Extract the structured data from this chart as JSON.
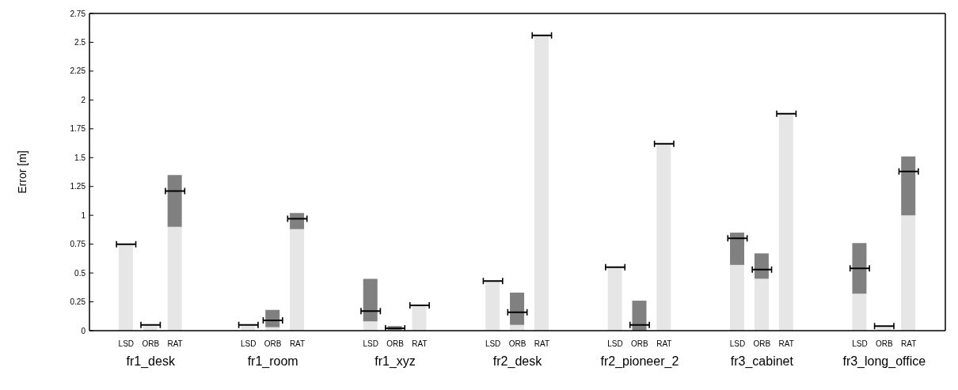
{
  "chart_data": {
    "type": "bar",
    "ylabel": "Error [m]",
    "stacked": true,
    "categories": [
      null,
      "LSD",
      "ORB",
      "RAT",
      null,
      null,
      "LSD",
      "ORB",
      "RAT",
      null,
      null,
      "LSD",
      "ORB",
      "RAT",
      null,
      null,
      "LSD",
      "ORB",
      "RAT",
      null,
      null,
      "LSD",
      "ORB",
      "RAT",
      null,
      null,
      "LSD",
      "ORB",
      "RAT",
      null,
      null,
      "LSD",
      "ORB",
      "RAT",
      null
    ],
    "series": [
      {
        "color": "#e6e6e6",
        "values": [
          null,
          0.75,
          0.04,
          0.9,
          null,
          null,
          0.04,
          0.03,
          0.88,
          null,
          null,
          0.08,
          0.005,
          0.22,
          null,
          null,
          0.43,
          0.05,
          2.56,
          null,
          null,
          0.55,
          0,
          1.62,
          null,
          null,
          0.57,
          0.45,
          1.88,
          null,
          null,
          0.32,
          0.03,
          1.0,
          null
        ]
      },
      {
        "color": "#808080",
        "values": [
          null,
          0,
          null,
          0.45,
          null,
          null,
          null,
          0.15,
          0.14,
          null,
          null,
          0.37,
          0.035,
          0,
          null,
          null,
          0,
          0.28,
          0,
          null,
          null,
          0,
          0.26,
          0,
          null,
          null,
          0.28,
          0.22,
          0,
          null,
          null,
          0.44,
          null,
          0.51,
          null
        ]
      },
      {
        "type": "scatter",
        "color": "#000000",
        "values": [
          null,
          0.75,
          0.05,
          1.21,
          null,
          null,
          0.05,
          0.09,
          0.97,
          null,
          null,
          0.17,
          0.02,
          0.22,
          null,
          null,
          0.43,
          0.16,
          2.56,
          null,
          null,
          0.55,
          0.05,
          1.62,
          null,
          null,
          0.8,
          0.53,
          1.88,
          null,
          null,
          0.54,
          0.04,
          1.38,
          null
        ]
      }
    ],
    "annotations": [
      "fr1_desk",
      "fr1_room",
      "fr1_xyz",
      "fr2_desk",
      "fr2_pioneer_2",
      "fr3_cabinet",
      "fr3_long_office"
    ],
    "ylim": [
      0,
      2.75
    ],
    "yticks": [
      0,
      {
        "value": 0.25,
        "label": "0.25"
      },
      {
        "value": 0.5,
        "label": "0.5"
      },
      {
        "value": 0.75,
        "label": "0.75"
      },
      1,
      {
        "value": 1.25,
        "label": "1.25"
      },
      {
        "value": 1.5,
        "label": "1.5"
      },
      {
        "value": 1.75,
        "label": "1.75"
      },
      2,
      {
        "value": 2.25,
        "label": "2.25"
      },
      {
        "value": 2.5,
        "label": "2.5"
      },
      {
        "value": 2.75,
        "label": "2.75"
      }
    ],
    "grid": false,
    "legend": false
  }
}
